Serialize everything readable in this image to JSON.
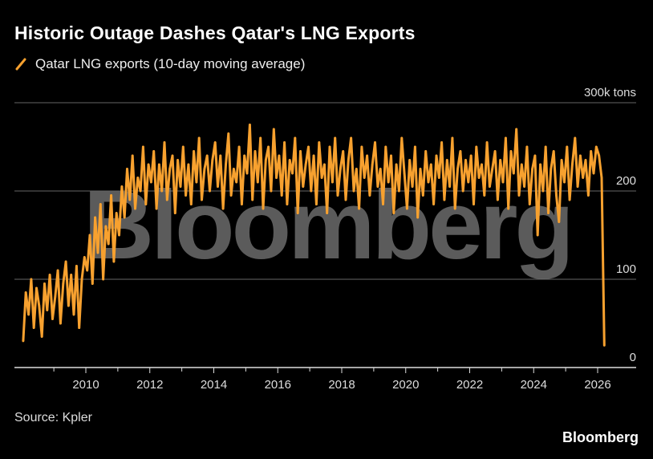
{
  "title": "Historic Outage Dashes Qatar's LNG Exports",
  "source": "Source: Kpler",
  "brand": "Bloomberg",
  "watermark": "Bloomberg",
  "colors": {
    "series": "#f7a12f",
    "background": "#000000",
    "grid": "#666666"
  },
  "chart_data": {
    "type": "line",
    "title": "Historic Outage Dashes Qatar's LNG Exports",
    "legend": [
      {
        "label": "Qatar LNG exports (10-day moving average)",
        "icon": "slash-line-icon"
      }
    ],
    "legend_placement": "top-left",
    "xlabel": "",
    "ylabel": "",
    "x_ticks": [
      "2010",
      "2012",
      "2014",
      "2016",
      "2018",
      "2020",
      "2022",
      "2024",
      "2026"
    ],
    "y_ticks": [
      {
        "value": 0,
        "label": "0"
      },
      {
        "value": 100,
        "label": "100"
      },
      {
        "value": 200,
        "label": "200"
      },
      {
        "value": 300,
        "label": "300k tons"
      }
    ],
    "xlim": [
      2007.8,
      2027.2
    ],
    "ylim": [
      0,
      300
    ],
    "grid": true,
    "x_start": 2008,
    "x_step": "monthly",
    "series": [
      {
        "name": "Qatar LNG exports (10-day moving average)",
        "unit": "thousand tons",
        "values": [
          30,
          85,
          60,
          100,
          45,
          90,
          70,
          35,
          95,
          65,
          105,
          55,
          80,
          110,
          50,
          95,
          120,
          70,
          105,
          60,
          115,
          45,
          100,
          125,
          110,
          150,
          95,
          170,
          130,
          185,
          100,
          160,
          140,
          195,
          120,
          175,
          150,
          205,
          170,
          225,
          190,
          240,
          180,
          215,
          200,
          250,
          185,
          230,
          210,
          245,
          180,
          230,
          200,
          255,
          190,
          225,
          240,
          175,
          235,
          205,
          250,
          195,
          230,
          185,
          245,
          210,
          260,
          190,
          225,
          240,
          200,
          235,
          255,
          205,
          240,
          180,
          230,
          265,
          195,
          225,
          210,
          250,
          185,
          240,
          220,
          275,
          190,
          245,
          210,
          260,
          180,
          235,
          250,
          200,
          270,
          215,
          240,
          195,
          255,
          185,
          235,
          220,
          260,
          175,
          245,
          205,
          230,
          250,
          200,
          240,
          185,
          255,
          215,
          230,
          175,
          250,
          210,
          260,
          195,
          225,
          245,
          190,
          235,
          260,
          200,
          225,
          180,
          250,
          215,
          240,
          195,
          230,
          255,
          205,
          225,
          185,
          250,
          210,
          240,
          175,
          230,
          200,
          260,
          220,
          180,
          235,
          205,
          250,
          170,
          225,
          195,
          245,
          210,
          230,
          185,
          240,
          215,
          255,
          190,
          235,
          205,
          260,
          180,
          225,
          245,
          200,
          235,
          210,
          240,
          185,
          250,
          215,
          230,
          195,
          255,
          205,
          225,
          245,
          190,
          235,
          210,
          260,
          180,
          245,
          220,
          270,
          195,
          230,
          205,
          250,
          185,
          225,
          240,
          150,
          230,
          200,
          250,
          175,
          225,
          245,
          195,
          165,
          235,
          210,
          250,
          190,
          230,
          260,
          205,
          240,
          215,
          235,
          195,
          245,
          220,
          250,
          240,
          215,
          25
        ]
      }
    ]
  }
}
